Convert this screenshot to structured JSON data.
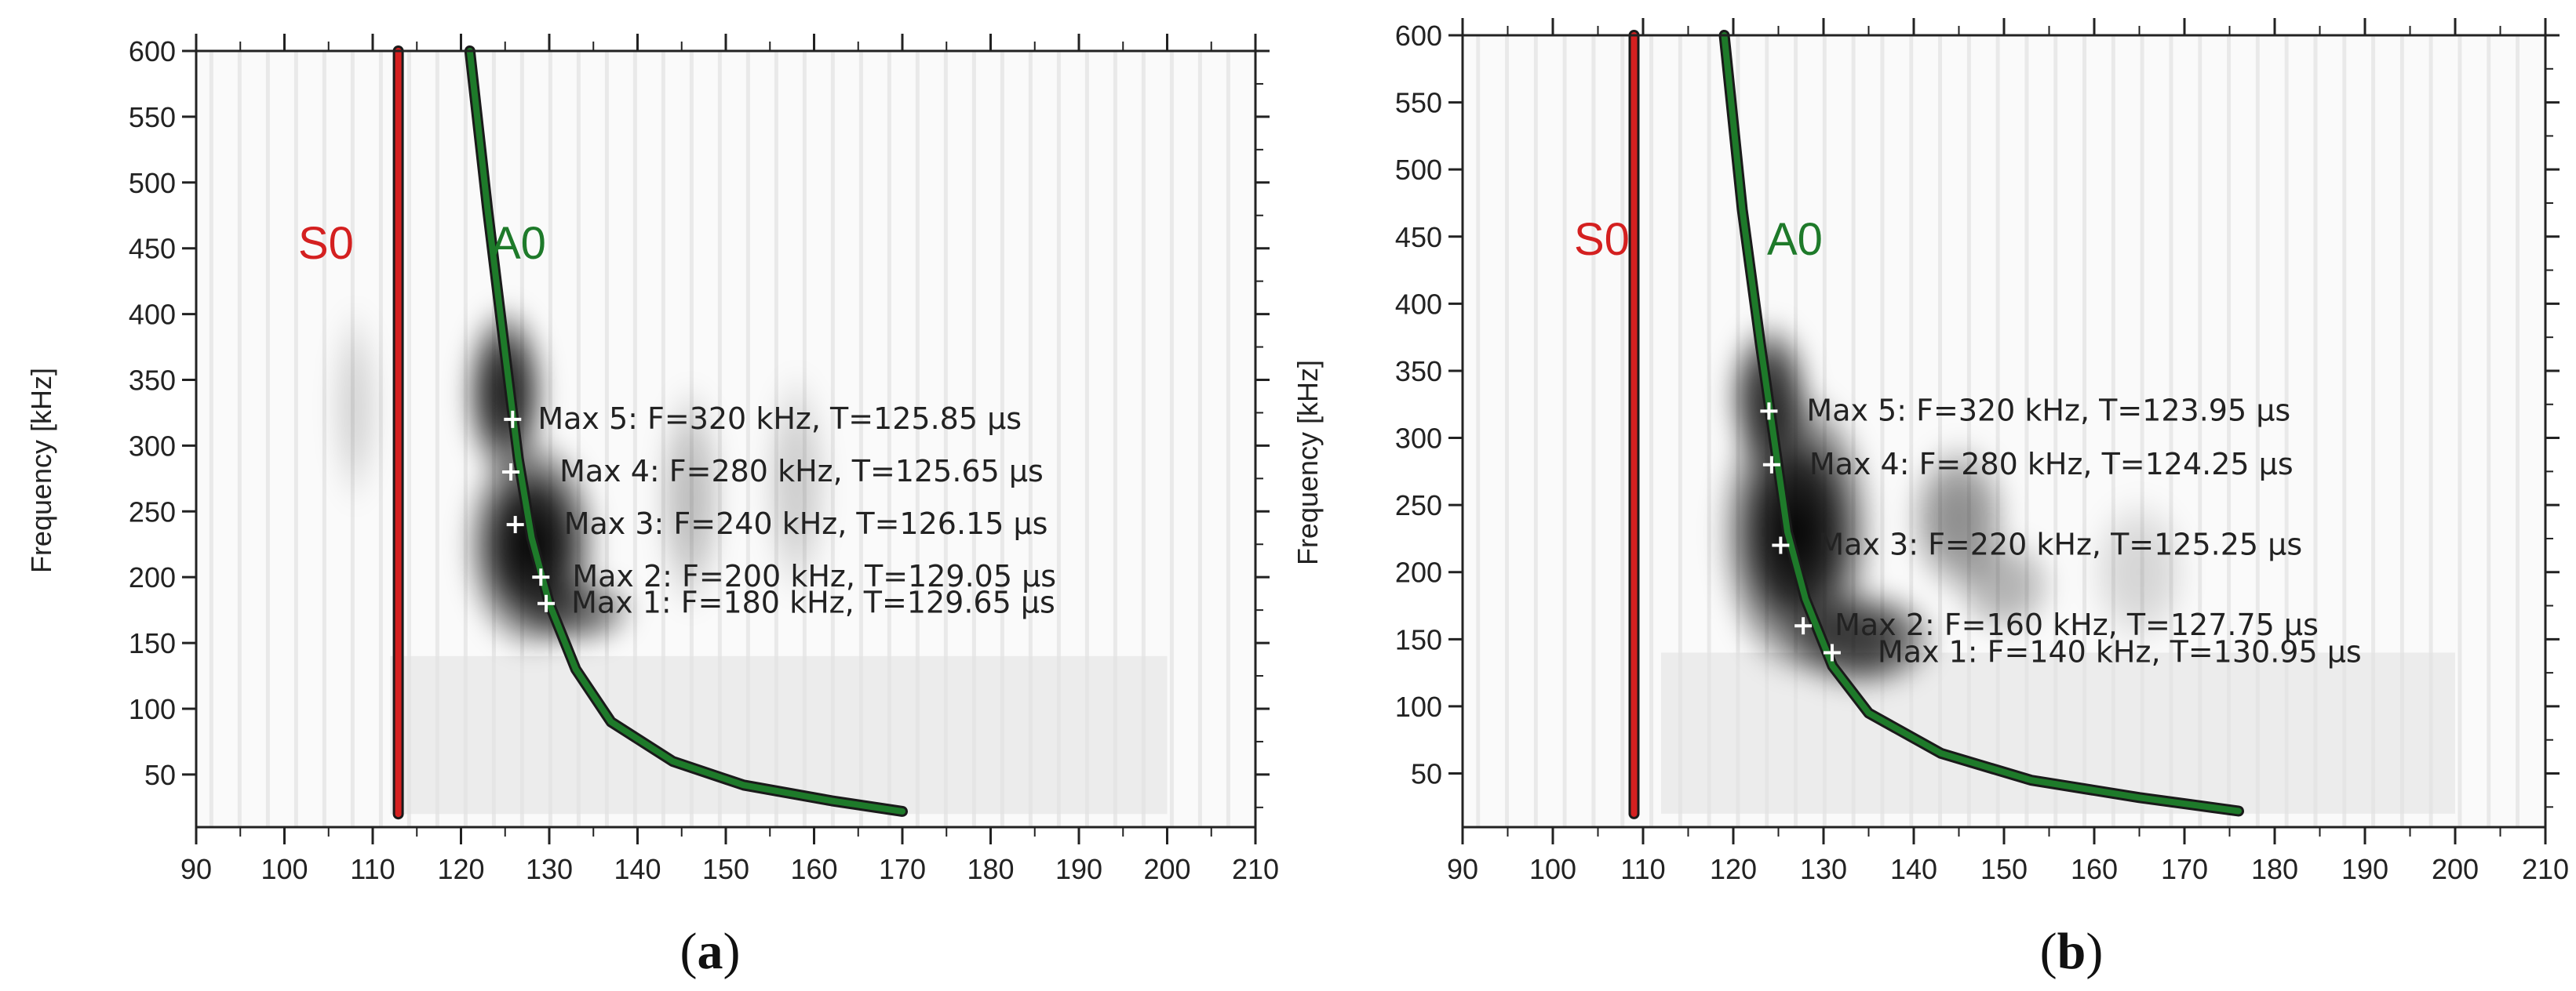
{
  "chart_data": [
    {
      "type": "heatmap",
      "panel_label": "(a)",
      "panel_letter": "a",
      "ylabel": "Frequency [kHz]",
      "xlabel": "",
      "xlim": [
        90,
        210
      ],
      "ylim": [
        10,
        600
      ],
      "x_ticks": [
        90,
        100,
        110,
        120,
        130,
        140,
        150,
        160,
        170,
        180,
        190,
        200,
        210
      ],
      "y_ticks": [
        50,
        100,
        150,
        200,
        250,
        300,
        350,
        400,
        450,
        500,
        550,
        600
      ],
      "grid": false,
      "colormap": "grayscale",
      "energy_blobs": [
        {
          "t": 128,
          "f": 225,
          "rt": 8,
          "rf": 85,
          "strength": 1.0
        },
        {
          "t": 125,
          "f": 340,
          "rt": 5,
          "rf": 70,
          "strength": 0.9
        },
        {
          "t": 133,
          "f": 175,
          "rt": 7,
          "rf": 30,
          "strength": 0.6
        },
        {
          "t": 146,
          "f": 260,
          "rt": 4,
          "rf": 90,
          "strength": 0.25
        },
        {
          "t": 158,
          "f": 270,
          "rt": 4,
          "rf": 90,
          "strength": 0.18
        },
        {
          "t": 108,
          "f": 330,
          "rt": 3,
          "rf": 80,
          "strength": 0.15
        }
      ],
      "series": [
        {
          "name": "S0",
          "color": "#d42020",
          "x": [
            112.9,
            112.9,
            112.9,
            112.9
          ],
          "y": [
            20,
            200,
            400,
            600
          ]
        },
        {
          "name": "A0",
          "color": "#1e7a2a",
          "x": [
            121,
            123,
            125,
            126.5,
            128,
            130,
            133,
            137,
            144,
            152,
            162,
            170
          ],
          "y": [
            600,
            480,
            370,
            290,
            230,
            180,
            130,
            90,
            60,
            42,
            30,
            22
          ]
        }
      ],
      "maxima": [
        {
          "label": "Max 5: F=320 kHz, T=125.85 µs",
          "t": 125.85,
          "f": 320
        },
        {
          "label": "Max 4: F=280 kHz, T=125.65 µs",
          "t": 125.65,
          "f": 280
        },
        {
          "label": "Max 3: F=240 kHz, T=126.15 µs",
          "t": 126.15,
          "f": 240
        },
        {
          "label": "Max 2: F=200 kHz, T=129.05 µs",
          "t": 129.05,
          "f": 200
        },
        {
          "label": "Max 1: F=180 kHz, T=129.65 µs",
          "t": 129.65,
          "f": 180
        }
      ]
    },
    {
      "type": "heatmap",
      "panel_label": "(b)",
      "panel_letter": "b",
      "ylabel": "Frequency [kHz]",
      "xlabel": "",
      "xlim": [
        90,
        210
      ],
      "ylim": [
        10,
        600
      ],
      "x_ticks": [
        90,
        100,
        110,
        120,
        130,
        140,
        150,
        160,
        170,
        180,
        190,
        200,
        210
      ],
      "y_ticks": [
        50,
        100,
        150,
        200,
        250,
        300,
        350,
        400,
        450,
        500,
        550,
        600
      ],
      "grid": false,
      "colormap": "grayscale",
      "energy_blobs": [
        {
          "t": 127,
          "f": 230,
          "rt": 9,
          "rf": 110,
          "strength": 1.0
        },
        {
          "t": 124,
          "f": 330,
          "rt": 5,
          "rf": 60,
          "strength": 0.85
        },
        {
          "t": 134,
          "f": 150,
          "rt": 9,
          "rf": 40,
          "strength": 0.8
        },
        {
          "t": 145,
          "f": 240,
          "rt": 6,
          "rf": 60,
          "strength": 0.45
        },
        {
          "t": 150,
          "f": 190,
          "rt": 6,
          "rf": 40,
          "strength": 0.3
        },
        {
          "t": 165,
          "f": 200,
          "rt": 6,
          "rf": 60,
          "strength": 0.15
        }
      ],
      "series": [
        {
          "name": "S0",
          "color": "#d42020",
          "x": [
            109,
            109,
            109,
            109
          ],
          "y": [
            20,
            200,
            400,
            600
          ]
        },
        {
          "name": "A0",
          "color": "#1e7a2a",
          "x": [
            119,
            121,
            123,
            124.5,
            126,
            128,
            131,
            135,
            143,
            153,
            165,
            176
          ],
          "y": [
            600,
            470,
            370,
            300,
            230,
            180,
            130,
            95,
            65,
            45,
            32,
            22
          ]
        }
      ],
      "maxima": [
        {
          "label": "Max 5: F=320 kHz, T=123.95 µs",
          "t": 123.95,
          "f": 320
        },
        {
          "label": "Max 4: F=280 kHz, T=124.25 µs",
          "t": 124.25,
          "f": 280
        },
        {
          "label": "Max 3: F=220 kHz, T=125.25 µs",
          "t": 125.25,
          "f": 220
        },
        {
          "label": "Max 2: F=160 kHz, T=127.75 µs",
          "t": 127.75,
          "f": 160
        },
        {
          "label": "Max 1: F=140 kHz, T=130.95 µs",
          "t": 130.95,
          "f": 140
        }
      ]
    }
  ]
}
